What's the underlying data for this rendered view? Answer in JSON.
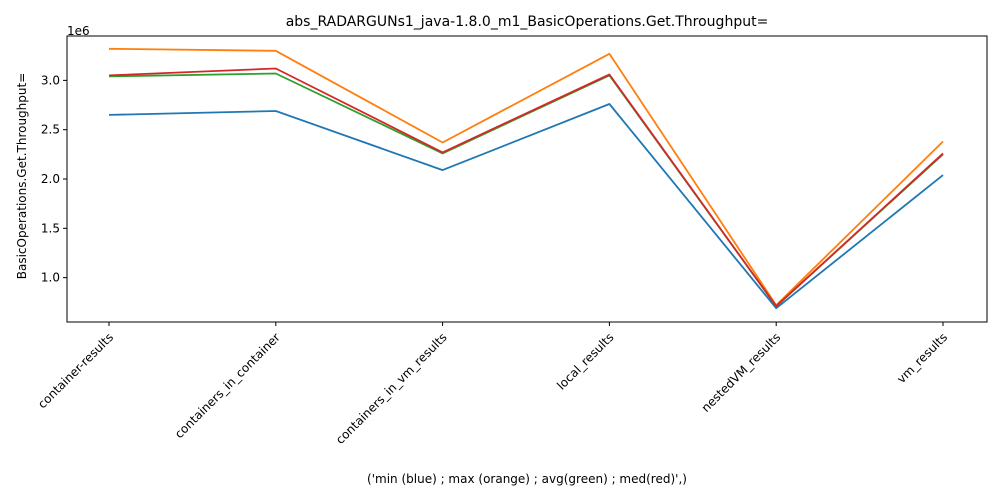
{
  "chart_data": {
    "type": "line",
    "title": "abs_RADARGUNs1_java-1.8.0_m1_BasicOperations.Get.Throughput=",
    "xlabel": "('min (blue) ; max (orange) ; avg(green) ; med(red)',)",
    "ylabel": "BasicOperations.Get.Throughput=",
    "y_scale_label": "1e6",
    "categories": [
      "container-results",
      "containers_in_container",
      "containers_in_vm_results",
      "local_results",
      "nestedVM_results",
      "vm_results"
    ],
    "ylim": [
      0.55,
      3.45
    ],
    "yticks": [
      1.0,
      1.5,
      2.0,
      2.5,
      3.0
    ],
    "ytick_labels": [
      "1.0",
      "1.5",
      "2.0",
      "2.5",
      "3.0"
    ],
    "grid": false,
    "legend": "none",
    "series": [
      {
        "color": "#1f77b4",
        "values": [
          2.65,
          2.69,
          2.09,
          2.76,
          0.69,
          2.04
        ]
      },
      {
        "color": "#ff7f0e",
        "values": [
          3.32,
          3.3,
          2.37,
          3.27,
          0.72,
          2.38
        ]
      },
      {
        "color": "#2ca02c",
        "values": [
          3.04,
          3.07,
          2.26,
          3.05,
          0.71,
          2.25
        ]
      },
      {
        "color": "#d62728",
        "values": [
          3.05,
          3.12,
          2.27,
          3.06,
          0.71,
          2.26
        ]
      }
    ]
  }
}
